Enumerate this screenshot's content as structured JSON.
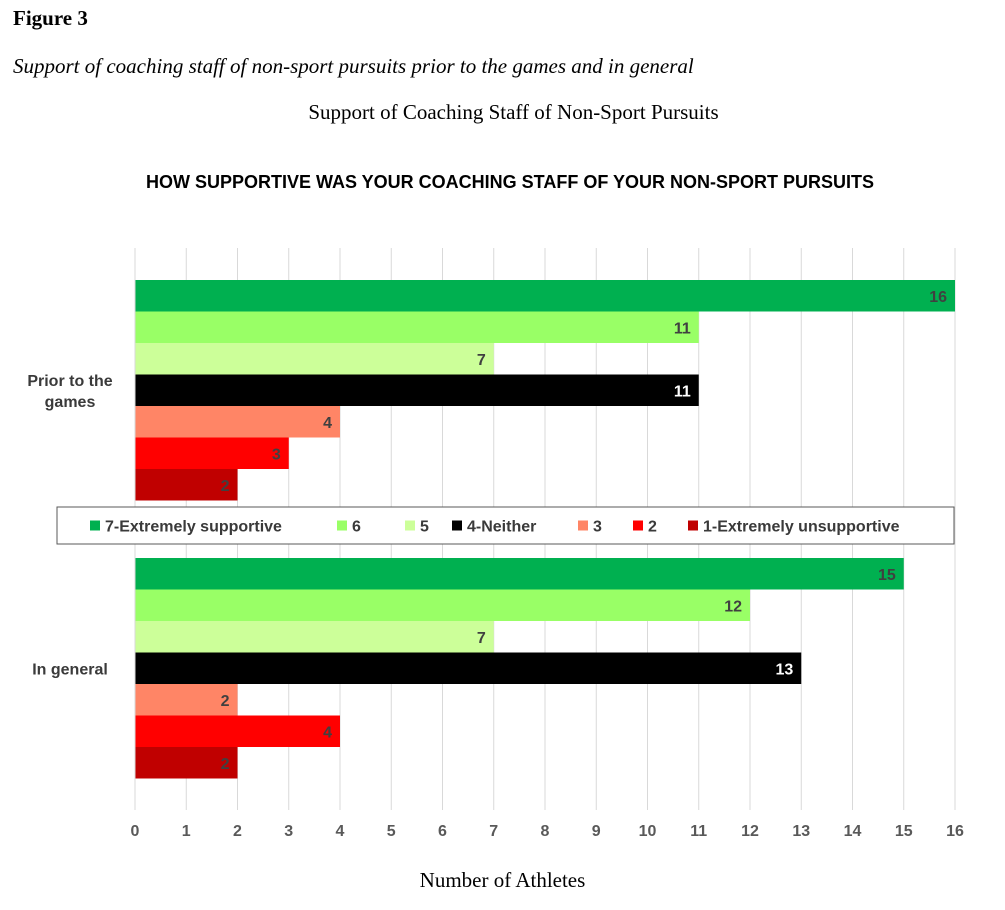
{
  "figure": {
    "label": "Figure 3",
    "caption": "Support of coaching staff of non-sport pursuits prior to the games and in general",
    "subtitle": "Support of Coaching Staff of Non-Sport Pursuits",
    "x_axis_title": "Number of Athletes"
  },
  "chart_data": {
    "type": "bar",
    "orientation": "horizontal",
    "title": "HOW SUPPORTIVE WAS YOUR COACHING STAFF OF YOUR NON-SPORT PURSUITS",
    "xlabel": "Number of Athletes",
    "ylabel": "",
    "categories": [
      "Prior to the games",
      "In general"
    ],
    "xlim": [
      0,
      16
    ],
    "x_ticks": [
      0,
      1,
      2,
      3,
      4,
      5,
      6,
      7,
      8,
      9,
      10,
      11,
      12,
      13,
      14,
      15,
      16
    ],
    "grid": "vertical",
    "legend_position": "middle",
    "series": [
      {
        "name": "7-Extremely supportive",
        "color": "#00B050",
        "label_color": "#404040",
        "values": [
          16,
          15
        ]
      },
      {
        "name": "6",
        "color": "#99FF66",
        "label_color": "#404040",
        "values": [
          11,
          12
        ]
      },
      {
        "name": "5",
        "color": "#CCFF99",
        "label_color": "#404040",
        "values": [
          7,
          7
        ]
      },
      {
        "name": "4-Neither",
        "color": "#000000",
        "label_color": "#FFFFFF",
        "values": [
          11,
          13
        ]
      },
      {
        "name": "3",
        "color": "#FF8566",
        "label_color": "#404040",
        "values": [
          4,
          2
        ]
      },
      {
        "name": "2",
        "color": "#FF0000",
        "label_color": "#404040",
        "values": [
          3,
          4
        ]
      },
      {
        "name": "1-Extremely unsupportive",
        "color": "#C00000",
        "label_color": "#404040",
        "values": [
          2,
          2
        ]
      }
    ]
  }
}
